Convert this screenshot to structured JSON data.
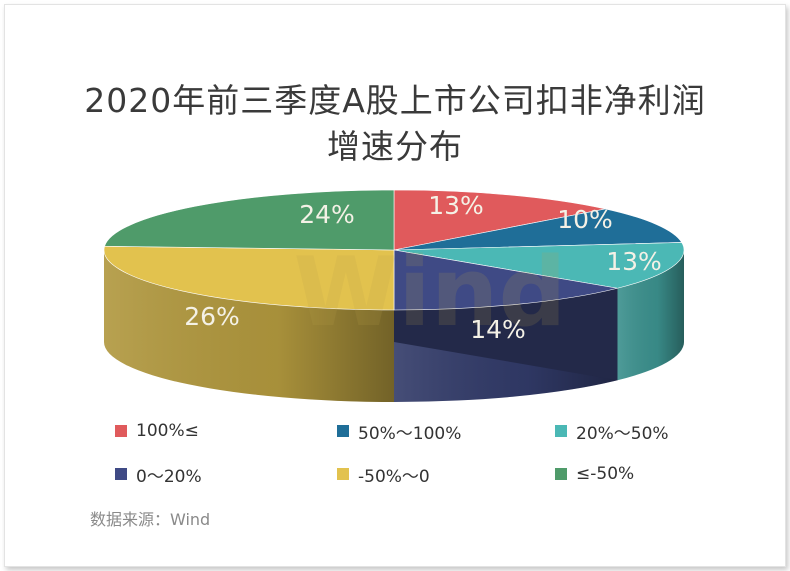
{
  "chart_data": {
    "type": "pie",
    "title_line1": "2020年前三季度A股上市公司扣非净利润",
    "title_line2": "增速分布",
    "watermark": "Wind",
    "slices": [
      {
        "name": "100%≤",
        "value": 13,
        "label": "13%",
        "color": "#e05a5c"
      },
      {
        "name": "50%～100%",
        "value": 10,
        "label": "10%",
        "color": "#1f6e98"
      },
      {
        "name": "20%～50%",
        "value": 13,
        "label": "13%",
        "color": "#4bb8b5"
      },
      {
        "name": "0～20%",
        "value": 14,
        "label": "14%",
        "color": "#3f4a85"
      },
      {
        "name": "-50%～0",
        "value": 26,
        "label": "26%",
        "color": "#e2c24e"
      },
      {
        "name": "≤-50%",
        "value": 24,
        "label": "24%",
        "color": "#4f9b6a"
      }
    ],
    "legend_placement": "bottom"
  },
  "source": "数据来源：Wind"
}
